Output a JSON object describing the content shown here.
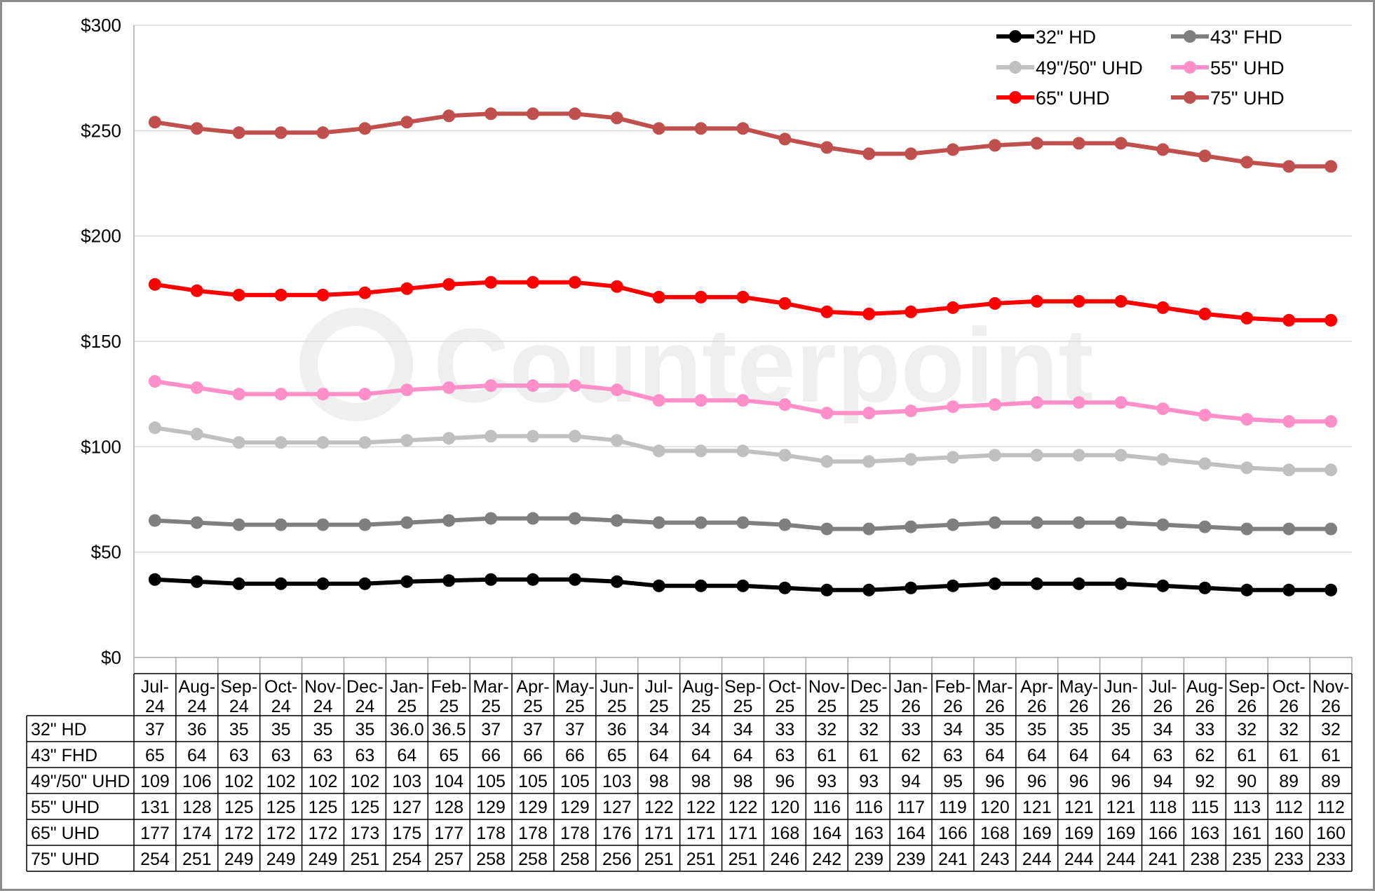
{
  "chart_data": {
    "type": "line",
    "title": "",
    "xlabel": "",
    "ylabel": "",
    "ylim": [
      0,
      300
    ],
    "yticks": [
      "$0",
      "$50",
      "$100",
      "$150",
      "$200",
      "$250",
      "$300"
    ],
    "ytick_values": [
      0,
      50,
      100,
      150,
      200,
      250,
      300
    ],
    "grid": true,
    "legend_position": "top-right",
    "watermark": "Counterpoint",
    "categories": [
      [
        "Jul-",
        "24"
      ],
      [
        "Aug-",
        "24"
      ],
      [
        "Sep-",
        "24"
      ],
      [
        "Oct-",
        "24"
      ],
      [
        "Nov-",
        "24"
      ],
      [
        "Dec-",
        "24"
      ],
      [
        "Jan-",
        "25"
      ],
      [
        "Feb-",
        "25"
      ],
      [
        "Mar-",
        "25"
      ],
      [
        "Apr-",
        "25"
      ],
      [
        "May-",
        "25"
      ],
      [
        "Jun-",
        "25"
      ],
      [
        "Jul-",
        "25"
      ],
      [
        "Aug-",
        "25"
      ],
      [
        "Sep-",
        "25"
      ],
      [
        "Oct-",
        "25"
      ],
      [
        "Nov-",
        "25"
      ],
      [
        "Dec-",
        "25"
      ],
      [
        "Jan-",
        "26"
      ],
      [
        "Feb-",
        "26"
      ],
      [
        "Mar-",
        "26"
      ],
      [
        "Apr-",
        "26"
      ],
      [
        "May-",
        "26"
      ],
      [
        "Jun-",
        "26"
      ],
      [
        "Jul-",
        "26"
      ],
      [
        "Aug-",
        "26"
      ],
      [
        "Sep-",
        "26"
      ],
      [
        "Oct-",
        "26"
      ],
      [
        "Nov-",
        "26"
      ]
    ],
    "series": [
      {
        "name": "32\" HD",
        "color": "#000000",
        "values": [
          37,
          36,
          35,
          35,
          35,
          35,
          36.0,
          36.5,
          37,
          37,
          37,
          36,
          34,
          34,
          34,
          33,
          32,
          32,
          33,
          34,
          35,
          35,
          35,
          35,
          34,
          33,
          32,
          32,
          32
        ],
        "labels": [
          "37",
          "36",
          "35",
          "35",
          "35",
          "35",
          "36.0",
          "36.5",
          "37",
          "37",
          "37",
          "36",
          "34",
          "34",
          "34",
          "33",
          "32",
          "32",
          "33",
          "34",
          "35",
          "35",
          "35",
          "35",
          "34",
          "33",
          "32",
          "32",
          "32"
        ]
      },
      {
        "name": "43\" FHD",
        "color": "#7f7f7f",
        "values": [
          65,
          64,
          63,
          63,
          63,
          63,
          64,
          65,
          66,
          66,
          66,
          65,
          64,
          64,
          64,
          63,
          61,
          61,
          62,
          63,
          64,
          64,
          64,
          64,
          63,
          62,
          61,
          61,
          61
        ],
        "labels": [
          "65",
          "64",
          "63",
          "63",
          "63",
          "63",
          "64",
          "65",
          "66",
          "66",
          "66",
          "65",
          "64",
          "64",
          "64",
          "63",
          "61",
          "61",
          "62",
          "63",
          "64",
          "64",
          "64",
          "64",
          "63",
          "62",
          "61",
          "61",
          "61"
        ]
      },
      {
        "name": "49\"/50\" UHD",
        "color": "#c0c0c0",
        "values": [
          109,
          106,
          102,
          102,
          102,
          102,
          103,
          104,
          105,
          105,
          105,
          103,
          98,
          98,
          98,
          96,
          93,
          93,
          94,
          95,
          96,
          96,
          96,
          96,
          94,
          92,
          90,
          89,
          89
        ],
        "labels": [
          "109",
          "106",
          "102",
          "102",
          "102",
          "102",
          "103",
          "104",
          "105",
          "105",
          "105",
          "103",
          "98",
          "98",
          "98",
          "96",
          "93",
          "93",
          "94",
          "95",
          "96",
          "96",
          "96",
          "96",
          "94",
          "92",
          "90",
          "89",
          "89"
        ]
      },
      {
        "name": "55\" UHD",
        "color": "#ff8fc8",
        "values": [
          131,
          128,
          125,
          125,
          125,
          125,
          127,
          128,
          129,
          129,
          129,
          127,
          122,
          122,
          122,
          120,
          116,
          116,
          117,
          119,
          120,
          121,
          121,
          121,
          118,
          115,
          113,
          112,
          112
        ],
        "labels": [
          "131",
          "128",
          "125",
          "125",
          "125",
          "125",
          "127",
          "128",
          "129",
          "129",
          "129",
          "127",
          "122",
          "122",
          "122",
          "120",
          "116",
          "116",
          "117",
          "119",
          "120",
          "121",
          "121",
          "121",
          "118",
          "115",
          "113",
          "112",
          "112"
        ]
      },
      {
        "name": "65\" UHD",
        "color": "#ff0000",
        "values": [
          177,
          174,
          172,
          172,
          172,
          173,
          175,
          177,
          178,
          178,
          178,
          176,
          171,
          171,
          171,
          168,
          164,
          163,
          164,
          166,
          168,
          169,
          169,
          169,
          166,
          163,
          161,
          160,
          160
        ],
        "labels": [
          "177",
          "174",
          "172",
          "172",
          "172",
          "173",
          "175",
          "177",
          "178",
          "178",
          "178",
          "176",
          "171",
          "171",
          "171",
          "168",
          "164",
          "163",
          "164",
          "166",
          "168",
          "169",
          "169",
          "169",
          "166",
          "163",
          "161",
          "160",
          "160"
        ]
      },
      {
        "name": "75\" UHD",
        "color": "#c0504d",
        "values": [
          254,
          251,
          249,
          249,
          249,
          251,
          254,
          257,
          258,
          258,
          258,
          256,
          251,
          251,
          251,
          246,
          242,
          239,
          239,
          241,
          243,
          244,
          244,
          244,
          241,
          238,
          235,
          233,
          233
        ],
        "labels": [
          "254",
          "251",
          "249",
          "249",
          "249",
          "251",
          "254",
          "257",
          "258",
          "258",
          "258",
          "256",
          "251",
          "251",
          "251",
          "246",
          "242",
          "239",
          "239",
          "241",
          "243",
          "244",
          "244",
          "244",
          "241",
          "238",
          "235",
          "233",
          "233"
        ]
      }
    ]
  }
}
